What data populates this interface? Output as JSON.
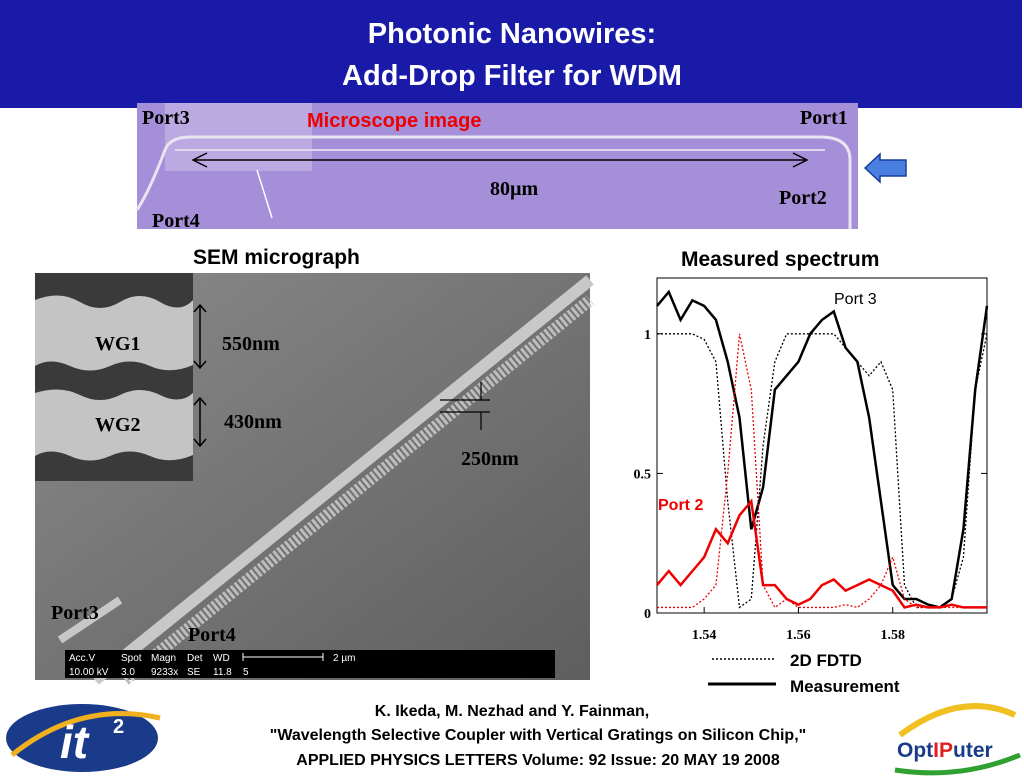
{
  "header": {
    "title_lines": [
      "Photonic Nanowires:",
      "Add-Drop Filter for WDM"
    ]
  },
  "microscope": {
    "caption": "Microscope image",
    "ports": [
      "Port3",
      "Port1",
      "Port2",
      "Port4"
    ],
    "scale_label": "80µm"
  },
  "sem": {
    "caption": "SEM micrograph",
    "labels": [
      "WG1",
      "550nm",
      "WG2",
      "430nm",
      "250nm",
      "Port3",
      "Port4"
    ],
    "info_bar": [
      "Acc.V",
      "Spot",
      "Magn",
      "Det",
      "WD",
      "2 µm",
      "10.00 kV",
      "3.0",
      "9233x",
      "SE",
      "11.8",
      "5"
    ]
  },
  "spectrum": {
    "title": "Measured spectrum",
    "xlim": [
      1.53,
      1.6
    ],
    "ylim": [
      0,
      1.2
    ],
    "xticks": [
      1.54,
      1.56,
      1.58
    ],
    "yticks": [
      0,
      0.5,
      1
    ],
    "annotations": [
      "Port 3",
      "Port 2"
    ],
    "legend": [
      "2D FDTD",
      "Measurement"
    ],
    "x": [
      1.53,
      1.5325,
      1.535,
      1.5375,
      1.54,
      1.5425,
      1.545,
      1.5475,
      1.55,
      1.5525,
      1.555,
      1.5575,
      1.56,
      1.5625,
      1.565,
      1.5675,
      1.57,
      1.5725,
      1.575,
      1.5775,
      1.58,
      1.5825,
      1.585,
      1.5875,
      1.59,
      1.5925,
      1.595,
      1.5975,
      1.6
    ],
    "series": [
      {
        "color": "#000000",
        "dash": "solid",
        "values": [
          1.1,
          1.15,
          1.05,
          1.12,
          1.1,
          1.05,
          0.9,
          0.7,
          0.3,
          0.45,
          0.8,
          0.85,
          0.9,
          1.0,
          1.05,
          1.08,
          0.95,
          0.9,
          0.7,
          0.4,
          0.1,
          0.05,
          0.05,
          0.03,
          0.02,
          0.05,
          0.3,
          0.8,
          1.1
        ]
      },
      {
        "color": "#000000",
        "dash": "dotted",
        "values": [
          1.0,
          1.0,
          1.0,
          1.0,
          0.98,
          0.9,
          0.4,
          0.02,
          0.05,
          0.6,
          0.9,
          1.0,
          1.0,
          1.0,
          1.0,
          1.0,
          0.95,
          0.9,
          0.85,
          0.9,
          0.8,
          0.1,
          0.02,
          0.02,
          0.02,
          0.05,
          0.2,
          0.8,
          1.0
        ]
      },
      {
        "color": "#ee0000",
        "dash": "solid",
        "values": [
          0.1,
          0.15,
          0.1,
          0.15,
          0.2,
          0.3,
          0.25,
          0.35,
          0.4,
          0.1,
          0.1,
          0.05,
          0.03,
          0.05,
          0.1,
          0.12,
          0.08,
          0.1,
          0.12,
          0.1,
          0.08,
          0.02,
          0.03,
          0.02,
          0.02,
          0.03,
          0.02,
          0.02,
          0.02
        ]
      },
      {
        "color": "#ee0000",
        "dash": "dotted",
        "values": [
          0.02,
          0.02,
          0.02,
          0.02,
          0.05,
          0.1,
          0.5,
          1.0,
          0.8,
          0.1,
          0.02,
          0.05,
          0.02,
          0.02,
          0.02,
          0.02,
          0.03,
          0.02,
          0.05,
          0.1,
          0.2,
          0.05,
          0.02,
          0.02,
          0.02,
          0.02,
          0.02,
          0.02,
          0.02
        ]
      }
    ]
  },
  "citation": {
    "lines": [
      "K. Ikeda, M. Nezhad and Y. Fainman,",
      "\"Wavelength Selective Coupler with Vertical Gratings on Silicon Chip,\"",
      "APPLIED PHYSICS LETTERS   Volume: 92   Issue: 20 MAY 19 2008"
    ]
  },
  "logos": {
    "left": [
      "it",
      "2"
    ],
    "right": [
      "Opt",
      "IP",
      "uter"
    ]
  }
}
